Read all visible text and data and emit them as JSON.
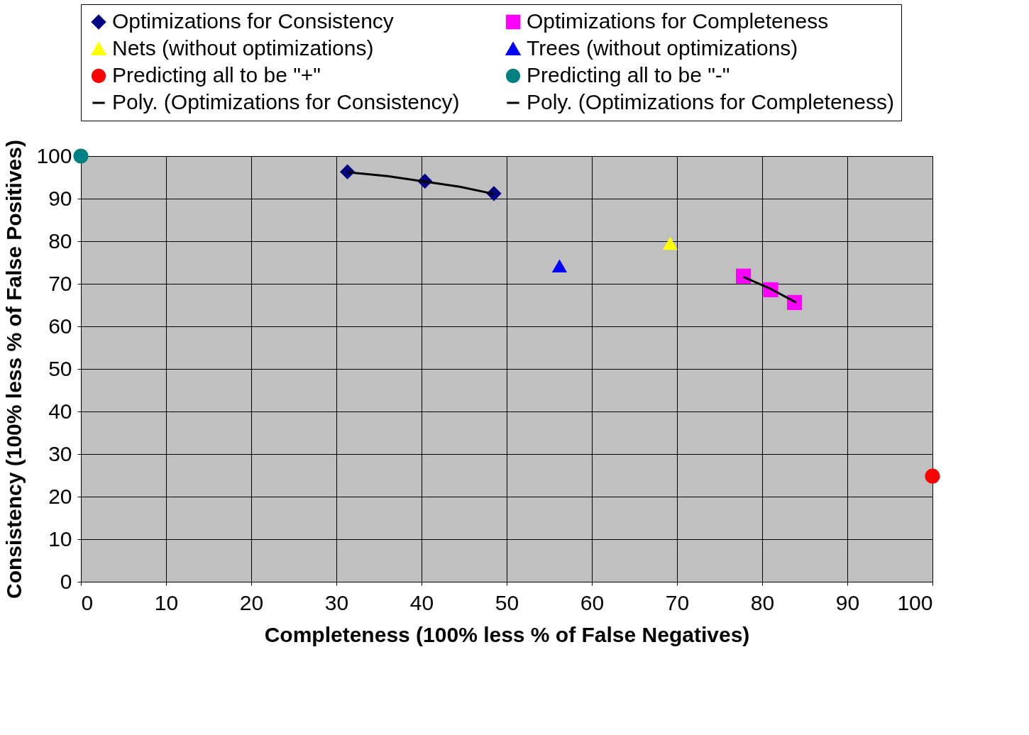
{
  "chart_data": {
    "type": "scatter",
    "xlabel": "Completeness (100% less % of False Negatives)",
    "ylabel": "Consistency (100% less % of False Positives)",
    "xlim": [
      0,
      100
    ],
    "ylim": [
      0,
      100
    ],
    "xticks": [
      0,
      10,
      20,
      30,
      40,
      50,
      60,
      70,
      80,
      90,
      100
    ],
    "yticks": [
      0,
      10,
      20,
      30,
      40,
      50,
      60,
      70,
      80,
      90,
      100
    ],
    "grid": true,
    "legend": "top",
    "series": [
      {
        "name": "Optimizations for Consistency",
        "color": "#000080",
        "marker": "diamond",
        "x": [
          31.3,
          40.4,
          48.5
        ],
        "values": [
          96.3,
          94.1,
          91.2
        ]
      },
      {
        "name": "Optimizations for Completeness",
        "color": "#ff00ff",
        "marker": "square",
        "x": [
          77.8,
          81.0,
          83.8
        ],
        "values": [
          71.8,
          68.6,
          65.6
        ]
      },
      {
        "name": "Nets (without optimizations)",
        "color": "#ffff00",
        "marker": "triangle",
        "x": [
          69.2
        ],
        "values": [
          79.5
        ]
      },
      {
        "name": "Trees (without optimizations)",
        "color": "#0000ff",
        "marker": "triangle",
        "x": [
          56.2
        ],
        "values": [
          74.2
        ]
      },
      {
        "name": "Predicting all to be \"+\"",
        "color": "#ff0000",
        "marker": "circle",
        "x": [
          100
        ],
        "values": [
          24.8
        ]
      },
      {
        "name": "Predicting all to be \"-\"",
        "color": "#008080",
        "marker": "circle",
        "x": [
          0
        ],
        "values": [
          100
        ]
      },
      {
        "name": "Poly. (Optimizations for Consistency)",
        "type": "line",
        "color": "#000000",
        "marker": "none",
        "x": [
          31.3,
          36,
          40.4,
          44.5,
          48.5
        ],
        "values": [
          96.2,
          95.3,
          94.0,
          92.8,
          91.1
        ]
      },
      {
        "name": "Poly. (Optimizations for Completeness)",
        "type": "line",
        "color": "#000000",
        "marker": "none",
        "x": [
          77.8,
          81.0,
          84.0
        ],
        "values": [
          71.6,
          68.8,
          65.6
        ]
      }
    ]
  }
}
